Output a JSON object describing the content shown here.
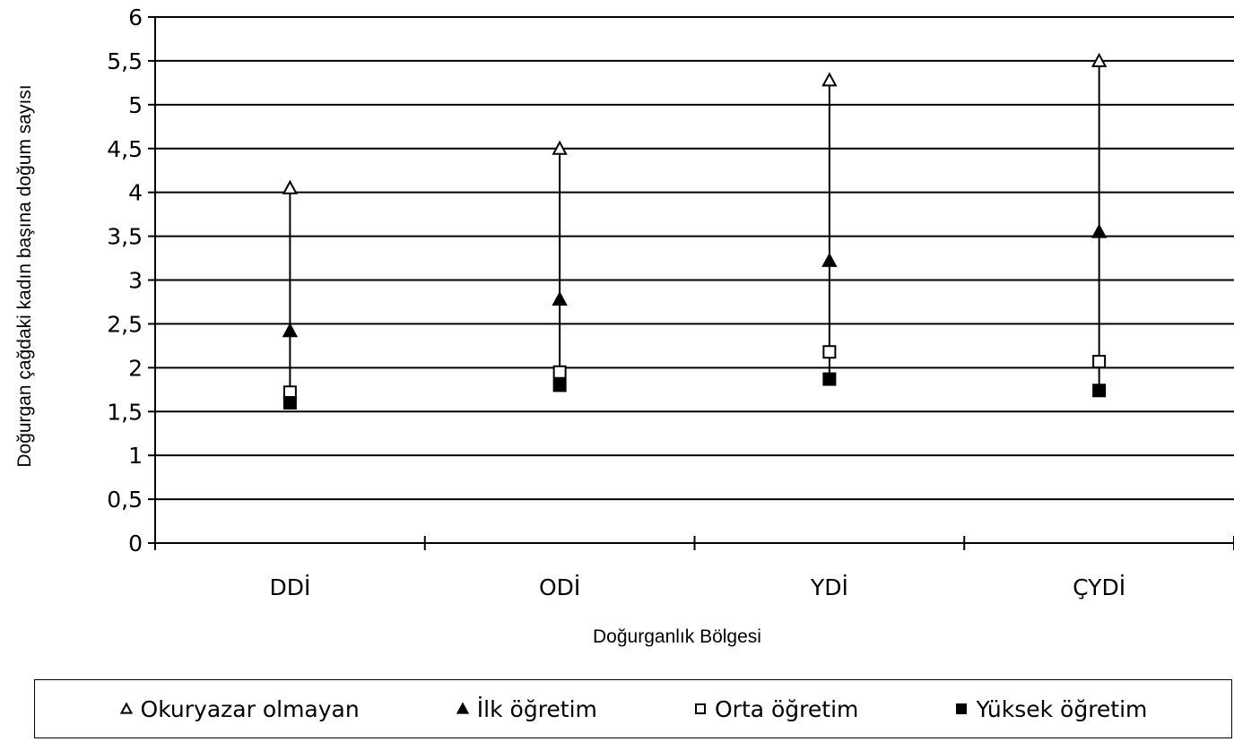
{
  "chart_data": {
    "type": "scatter",
    "categories": [
      "DDİ",
      "ODİ",
      "YDİ",
      "ÇYDİ"
    ],
    "xlabel": "Doğurganlık Bölgesi",
    "ylabel": "Doğurgan çağdaki kadın başına doğum sayısı",
    "ylim": [
      0,
      6
    ],
    "y_ticks": [
      "0",
      "0,5",
      "1",
      "1,5",
      "2",
      "2,5",
      "3",
      "3,5",
      "4",
      "4,5",
      "5",
      "5,5",
      "6"
    ],
    "grid": true,
    "legend_position": "bottom",
    "series": [
      {
        "name": "Okuryazar olmayan",
        "marker": "triangle-open",
        "values": [
          4.05,
          4.5,
          5.28,
          5.5
        ]
      },
      {
        "name": "İlk öğretim",
        "marker": "triangle-filled",
        "values": [
          2.42,
          2.78,
          3.22,
          3.55
        ]
      },
      {
        "name": "Orta öğretim",
        "marker": "square-open",
        "values": [
          1.72,
          1.95,
          2.18,
          2.07
        ]
      },
      {
        "name": "Yüksek öğretim",
        "marker": "square-filled",
        "values": [
          1.6,
          1.8,
          1.87,
          1.74
        ]
      }
    ],
    "range_lines": true
  }
}
